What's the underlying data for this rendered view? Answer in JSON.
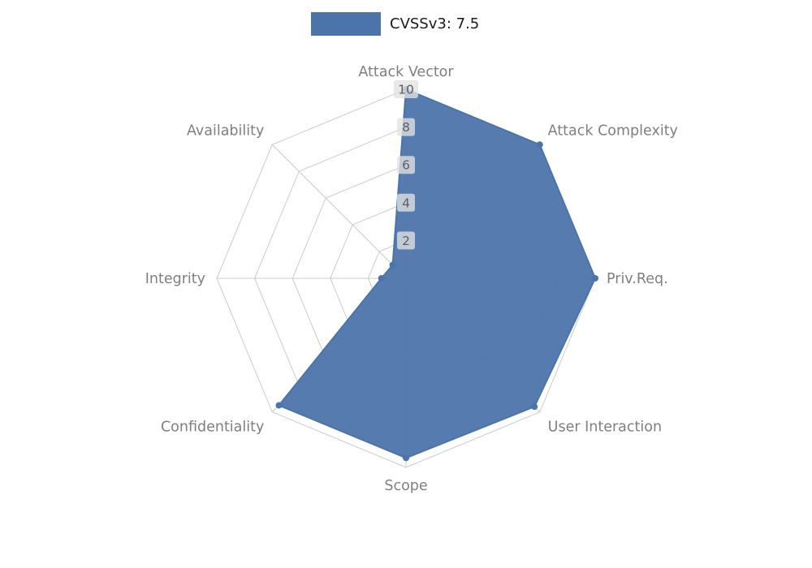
{
  "legend": {
    "label": "CVSSv3: 7.5",
    "swatch_color": "#4c74ab"
  },
  "chart_data": {
    "type": "radar",
    "title": "CVSSv3: 7.5",
    "categories": [
      "Attack Vector",
      "Attack Complexity",
      "Priv.Req.",
      "User Interaction",
      "Scope",
      "Confidentiality",
      "Integrity",
      "Availability"
    ],
    "series": [
      {
        "name": "CVSSv3: 7.5",
        "color": "#4c74ab",
        "values": [
          10,
          10,
          10,
          9.6,
          9.5,
          9.5,
          1.3,
          1.0
        ]
      }
    ],
    "ring_ticks": [
      2,
      4,
      6,
      8,
      10
    ],
    "r_max": 10,
    "grid_shape": "polygon",
    "legend_position": "top",
    "styles": {
      "grid_color": "#cccccc",
      "axis_label_color": "#7f7f7f",
      "tick_label_color": "#5f5f5f",
      "tick_label_bg": "#e2e2e2",
      "fill_opacity": 0.95
    }
  }
}
